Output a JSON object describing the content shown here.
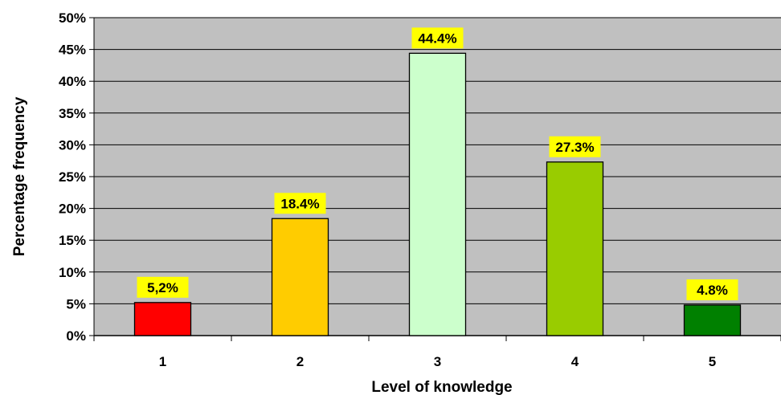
{
  "chart_data": {
    "type": "bar",
    "title": "",
    "xlabel": "Level of knowledge",
    "ylabel": "Percentage frequency",
    "categories": [
      "1",
      "2",
      "3",
      "4",
      "5"
    ],
    "values": [
      5.2,
      18.4,
      44.4,
      27.3,
      4.8
    ],
    "data_labels": [
      "5,2%",
      "18.4%",
      "44.4%",
      "27.3%",
      "4.8%"
    ],
    "bar_colors": [
      "#ff0000",
      "#ffcc00",
      "#ccffcc",
      "#99cc00",
      "#008000"
    ],
    "ylim": [
      0,
      50
    ],
    "yticks": [
      0,
      5,
      10,
      15,
      20,
      25,
      30,
      35,
      40,
      45,
      50
    ],
    "ytick_labels": [
      "0%",
      "5%",
      "10%",
      "15%",
      "20%",
      "25%",
      "30%",
      "35%",
      "40%",
      "45%",
      "50%"
    ],
    "grid": true,
    "plot_background": "#c0c0c0",
    "label_background": "#ffff00",
    "legend": "none"
  }
}
